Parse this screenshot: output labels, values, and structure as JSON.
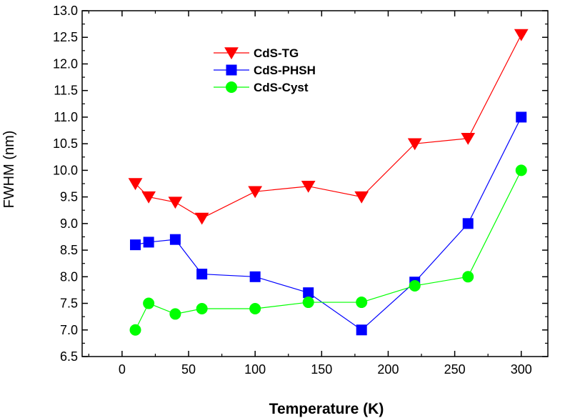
{
  "chart_data": {
    "type": "line",
    "title": "",
    "xlabel": "Temperature (K)",
    "ylabel": "FWHM (nm)",
    "xlim": [
      -30,
      320
    ],
    "ylim": [
      6.5,
      13.0
    ],
    "xticks": [
      0,
      50,
      100,
      150,
      200,
      250,
      300
    ],
    "yticks": [
      6.5,
      7.0,
      7.5,
      8.0,
      8.5,
      9.0,
      9.5,
      10.0,
      10.5,
      11.0,
      11.5,
      12.0,
      12.5,
      13.0
    ],
    "grid": false,
    "legend_position": "top-center",
    "series": [
      {
        "name": "CdS-TG",
        "color": "#ff0000",
        "marker": "triangle-down",
        "x": [
          10,
          20,
          40,
          60,
          100,
          140,
          180,
          220,
          260,
          300
        ],
        "y": [
          9.75,
          9.5,
          9.4,
          9.1,
          9.6,
          9.7,
          9.5,
          10.5,
          10.6,
          12.55
        ]
      },
      {
        "name": "CdS-PHSH",
        "color": "#0000ff",
        "marker": "square",
        "x": [
          10,
          20,
          40,
          60,
          100,
          140,
          180,
          220,
          260,
          300
        ],
        "y": [
          8.6,
          8.65,
          8.7,
          8.05,
          8.0,
          7.7,
          7.0,
          7.9,
          9.0,
          11.0
        ]
      },
      {
        "name": "CdS-Cyst",
        "color": "#00ff00",
        "marker": "circle",
        "x": [
          10,
          20,
          40,
          60,
          100,
          140,
          180,
          220,
          260,
          300
        ],
        "y": [
          7.0,
          7.5,
          7.3,
          7.4,
          7.4,
          7.52,
          7.52,
          7.83,
          8.0,
          10.0
        ]
      }
    ]
  }
}
